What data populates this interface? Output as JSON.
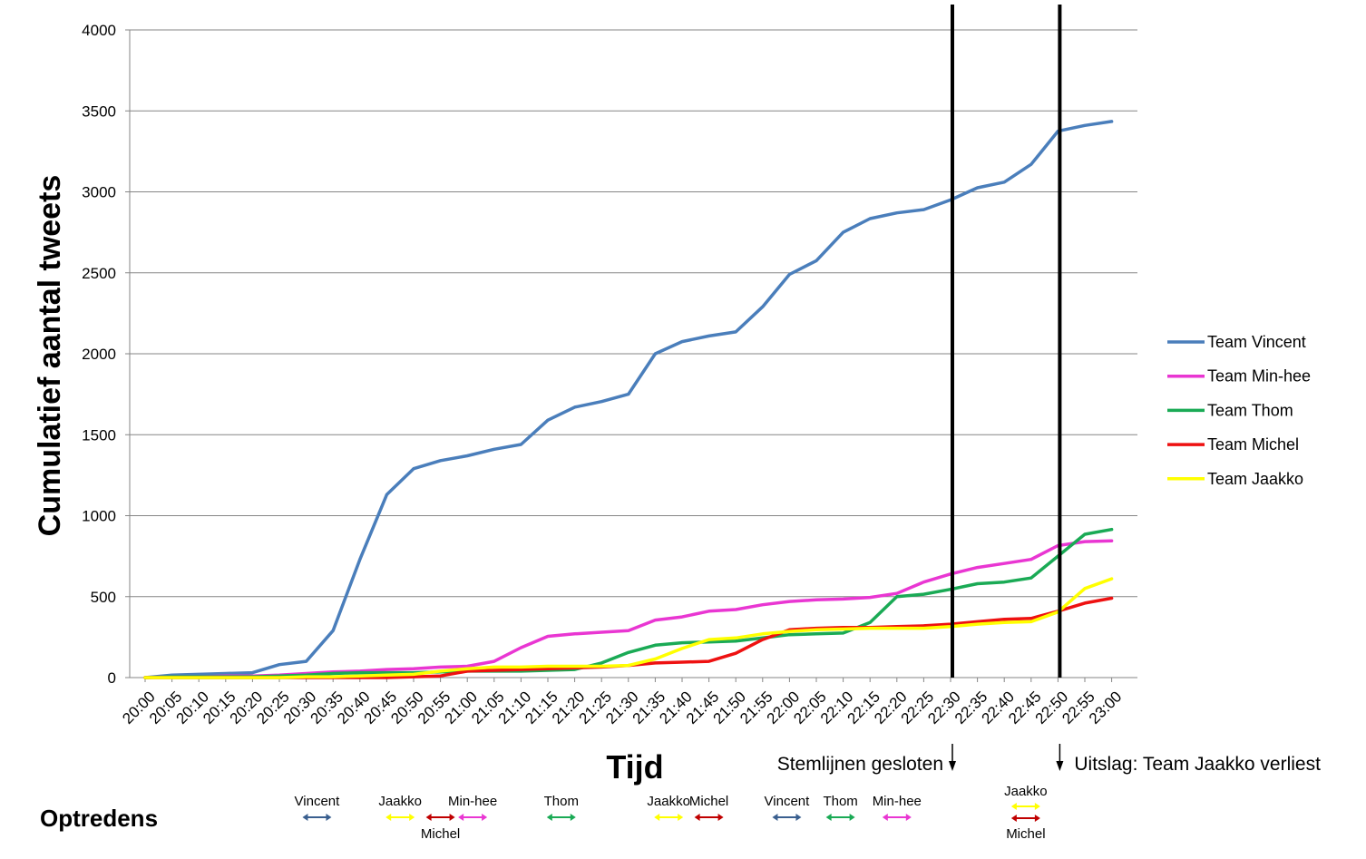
{
  "chart_data": {
    "type": "line",
    "title": "",
    "xlabel": "Tijd",
    "ylabel": "Cumulatief aantal tweets",
    "ylim": [
      0,
      4000
    ],
    "yticks": [
      0,
      500,
      1000,
      1500,
      2000,
      2500,
      3000,
      3500,
      4000
    ],
    "grid": true,
    "legend_position": "right",
    "categories": [
      "20:00",
      "20:05",
      "20:10",
      "20:15",
      "20:20",
      "20:25",
      "20:30",
      "20:35",
      "20:40",
      "20:45",
      "20:50",
      "20:55",
      "21:00",
      "21:05",
      "21:10",
      "21:15",
      "21:20",
      "21:25",
      "21:30",
      "21:35",
      "21:40",
      "21:45",
      "21:50",
      "21:55",
      "22:00",
      "22:05",
      "22:10",
      "22:15",
      "22:20",
      "22:25",
      "22:30",
      "22:35",
      "22:40",
      "22:45",
      "22:50",
      "22:55",
      "23:00"
    ],
    "series": [
      {
        "name": "Team Vincent",
        "color": "#4a7ebb",
        "values": [
          0,
          15,
          20,
          25,
          30,
          80,
          100,
          290,
          730,
          1130,
          1290,
          1340,
          1370,
          1410,
          1440,
          1590,
          1670,
          1705,
          1750,
          2000,
          2075,
          2110,
          2135,
          2290,
          2490,
          2575,
          2750,
          2835,
          2870,
          2890,
          2950,
          3025,
          3060,
          3170,
          3375,
          3410,
          3435
        ]
      },
      {
        "name": "Team Min-hee",
        "color": "#e936d2",
        "values": [
          0,
          5,
          5,
          10,
          10,
          15,
          25,
          35,
          40,
          50,
          55,
          65,
          70,
          100,
          185,
          255,
          270,
          280,
          290,
          355,
          375,
          410,
          420,
          450,
          470,
          480,
          485,
          495,
          520,
          590,
          640,
          680,
          705,
          730,
          815,
          840,
          845
        ]
      },
      {
        "name": "Team Thom",
        "color": "#1aaa55",
        "values": [
          0,
          5,
          5,
          5,
          5,
          10,
          15,
          25,
          30,
          30,
          30,
          35,
          40,
          40,
          40,
          45,
          50,
          90,
          155,
          200,
          215,
          220,
          225,
          245,
          265,
          270,
          275,
          340,
          500,
          515,
          545,
          580,
          590,
          615,
          750,
          885,
          915
        ]
      },
      {
        "name": "Team Michel",
        "color": "#ee1111",
        "values": [
          0,
          0,
          0,
          0,
          0,
          0,
          0,
          0,
          0,
          0,
          5,
          10,
          40,
          45,
          50,
          55,
          60,
          65,
          75,
          90,
          95,
          100,
          150,
          235,
          295,
          305,
          310,
          310,
          315,
          320,
          330,
          345,
          360,
          365,
          410,
          460,
          490
        ]
      },
      {
        "name": "Team Jaakko",
        "color": "#ffff00",
        "values": [
          0,
          0,
          0,
          0,
          0,
          0,
          5,
          5,
          10,
          15,
          20,
          40,
          55,
          65,
          65,
          70,
          70,
          70,
          75,
          115,
          180,
          235,
          245,
          270,
          285,
          295,
          300,
          305,
          305,
          305,
          315,
          330,
          340,
          345,
          405,
          550,
          610
        ]
      }
    ],
    "markers": [
      {
        "at": "22:30",
        "label": "Stemlijnen gesloten"
      },
      {
        "at": "22:50",
        "label": "Uitslag: Team Jaakko verliest"
      }
    ]
  },
  "performances": {
    "label": "Optredens",
    "items": [
      {
        "name": "Vincent",
        "color": "#3a5f8f",
        "at": 6.4,
        "label_pos": "above"
      },
      {
        "name": "Jaakko",
        "color": "#ffff00",
        "at": 9.5,
        "label_pos": "above"
      },
      {
        "name": "Michel",
        "color": "#c00000",
        "at": 11.0,
        "label_pos": "below"
      },
      {
        "name": "Min-hee",
        "color": "#e936d2",
        "at": 12.2,
        "label_pos": "above"
      },
      {
        "name": "Thom",
        "color": "#1aaa55",
        "at": 15.5,
        "label_pos": "above"
      },
      {
        "name": "Jaakko",
        "color": "#ffff00",
        "at": 19.5,
        "label_pos": "above"
      },
      {
        "name": "Michel",
        "color": "#c00000",
        "at": 21.0,
        "label_pos": "above"
      },
      {
        "name": "Vincent",
        "color": "#3a5f8f",
        "at": 23.9,
        "label_pos": "above"
      },
      {
        "name": "Thom",
        "color": "#1aaa55",
        "at": 25.9,
        "label_pos": "above"
      },
      {
        "name": "Min-hee",
        "color": "#e936d2",
        "at": 28.0,
        "label_pos": "above"
      },
      {
        "name": "Jaakko",
        "color": "#ffff00",
        "at": 32.8,
        "label_pos": "above"
      },
      {
        "name": "Michel",
        "color": "#c00000",
        "at": 32.8,
        "label_pos": "below"
      }
    ]
  }
}
